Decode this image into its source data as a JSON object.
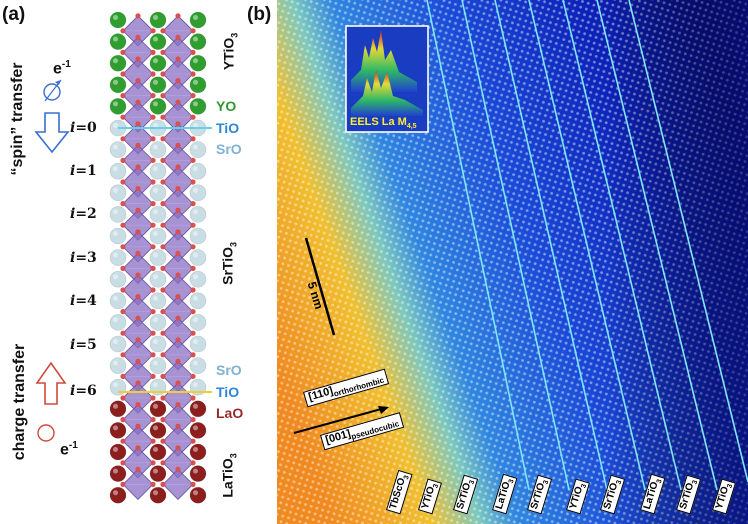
{
  "panel_a": {
    "label": "(a)",
    "electron_top": "e",
    "electron_top_sup": "-1",
    "spin_transfer": "“spin” transfer",
    "charge_transfer": "charge transfer",
    "electron_bottom": "e",
    "electron_bottom_sup": "-1",
    "i_labels": [
      {
        "prefix": "i",
        "value": "=0"
      },
      {
        "prefix": "i",
        "value": "=1"
      },
      {
        "prefix": "i",
        "value": "=2"
      },
      {
        "prefix": "i",
        "value": "=3"
      },
      {
        "prefix": "i",
        "value": "=4"
      },
      {
        "prefix": "i",
        "value": "=5"
      },
      {
        "prefix": "i",
        "value": "=6"
      }
    ],
    "film_yto": "YTiO",
    "film_yto_sub": "3",
    "film_sto": "SrTiO",
    "film_sto_sub": "3",
    "film_lto": "LaTiO",
    "film_lto_sub": "3",
    "layer_labels_top": [
      {
        "text": "YO",
        "color": "#2e9a2e"
      },
      {
        "text": "TiO",
        "color": "#2f86d8"
      },
      {
        "text": "SrO",
        "color": "#7fb2d4"
      }
    ],
    "layer_labels_bottom": [
      {
        "text": "SrO",
        "color": "#7fb2d4"
      },
      {
        "text": "TiO",
        "color": "#2f86d8"
      },
      {
        "text": "LaO",
        "color": "#9a2a2a"
      }
    ],
    "colors": {
      "y_atom": "#2f9e2f",
      "sr_atom": "#c9dde4",
      "la_atom": "#8c1e1e",
      "o_atom": "#d85050",
      "octahedron": "#8a6fc2",
      "spin_arrow": "#3a6fd0",
      "charge_arrow": "#d04a3a",
      "line_top": "#5fd2f0",
      "line_bottom": "#f0d030"
    }
  },
  "panel_b": {
    "label": "(b)",
    "inset_label": "EELS La M",
    "inset_label_sub": "4,5",
    "scale_bar": "5 nm",
    "dir1_main": "[110]",
    "dir1_sub": "orthorhombic",
    "dir2_main": "[001]",
    "dir2_sub": "pseudocubic",
    "bottom_labels": [
      {
        "main": "TbScO",
        "sub": "3"
      },
      {
        "main": "YTiO",
        "sub": "3"
      },
      {
        "main": "SrTiO",
        "sub": "3"
      },
      {
        "main": "LaTiO",
        "sub": "3"
      },
      {
        "main": "SrTiO",
        "sub": "3"
      },
      {
        "main": "YTiO",
        "sub": "3"
      },
      {
        "main": "SrTiO",
        "sub": "3"
      },
      {
        "main": "LaTiO",
        "sub": "3"
      },
      {
        "main": "SrTiO",
        "sub": "3"
      },
      {
        "main": "YTiO",
        "sub": "3"
      }
    ]
  }
}
